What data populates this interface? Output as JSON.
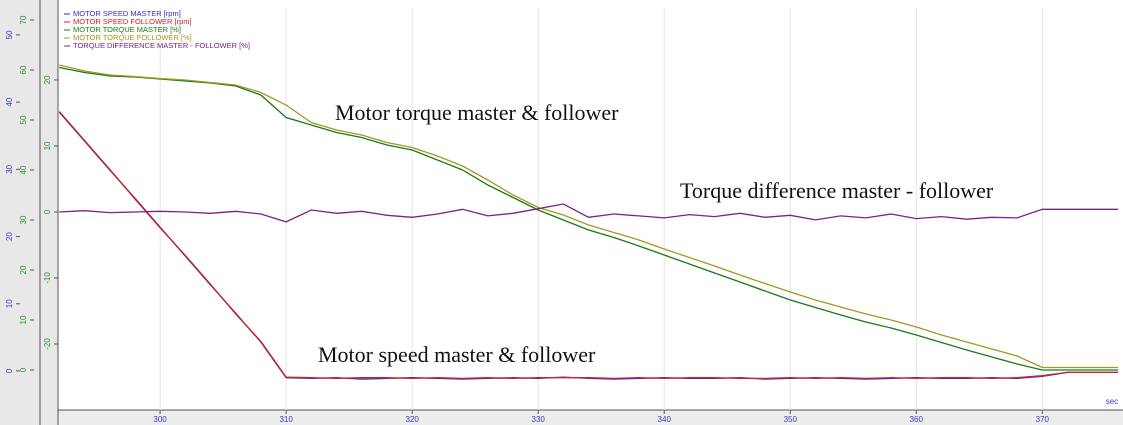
{
  "chart_data": {
    "type": "line",
    "x": [
      292,
      294,
      296,
      298,
      300,
      302,
      304,
      306,
      308,
      310,
      312,
      314,
      316,
      318,
      320,
      322,
      324,
      326,
      328,
      330,
      332,
      334,
      336,
      338,
      340,
      342,
      344,
      346,
      348,
      350,
      352,
      354,
      356,
      358,
      360,
      362,
      364,
      366,
      368,
      370,
      372,
      374,
      376
    ],
    "xlim": [
      291.9,
      376.4
    ],
    "xticks": [
      300,
      310,
      320,
      330,
      340,
      350,
      360,
      370
    ],
    "xlabel": "sec",
    "ylim": [
      -5.8,
      54
    ],
    "yticks": [
      0,
      10,
      20,
      30,
      40,
      50
    ],
    "ycolor": "#3a3ac8",
    "y2lim": [
      -8,
      72.4
    ],
    "y2ticks": [
      0,
      10,
      20,
      30,
      40,
      50,
      60,
      70
    ],
    "y2color": "#2e8b2e",
    "y3lim": [
      -30,
      30.9
    ],
    "y3ticks": [
      -20,
      -10,
      0,
      10,
      20
    ],
    "y3color": "#2e8b2e",
    "grid": true,
    "series": [
      {
        "name": "MOTOR SPEED MASTER [rpm]",
        "color": "#3030c0",
        "axis": "y",
        "values": [
          38.5,
          34.2,
          29.9,
          25.7,
          21.4,
          17.1,
          12.8,
          8.6,
          4.3,
          -1.0,
          -1.1,
          -1.0,
          -1.2,
          -1.1,
          -1.0,
          -1.1,
          -1.2,
          -1.1,
          -1.0,
          -1.1,
          -0.9,
          -1.1,
          -1.2,
          -1.1,
          -1.0,
          -1.1,
          -1.1,
          -1.0,
          -1.2,
          -1.1,
          -1.0,
          -1.1,
          -1.2,
          -1.1,
          -1.0,
          -1.1,
          -1.1,
          -1.0,
          -1.1,
          -0.8,
          -0.2,
          -0.2,
          -0.2
        ]
      },
      {
        "name": "MOTOR SPEED FOLLOWER [rpm]",
        "color": "#d02020",
        "axis": "y",
        "values": [
          38.6,
          34.3,
          30.0,
          25.6,
          21.3,
          17.2,
          12.9,
          8.5,
          4.4,
          -0.9,
          -1.0,
          -1.1,
          -1.0,
          -1.0,
          -1.1,
          -1.0,
          -1.1,
          -1.0,
          -1.1,
          -1.0,
          -1.0,
          -1.0,
          -1.1,
          -1.0,
          -1.1,
          -1.0,
          -1.0,
          -1.1,
          -1.1,
          -1.0,
          -1.1,
          -1.0,
          -1.1,
          -1.0,
          -1.1,
          -1.0,
          -1.0,
          -1.1,
          -1.0,
          -0.7,
          -0.2,
          -0.2,
          -0.2
        ]
      },
      {
        "name": "MOTOR TORQUE MASTER [%]",
        "color": "#1a7a1a",
        "axis": "y2",
        "values": [
          60.5,
          59.5,
          58.8,
          58.6,
          58.2,
          57.8,
          57.4,
          56.8,
          55,
          50.5,
          49,
          47.5,
          46.5,
          45,
          44,
          42,
          40,
          37,
          34.5,
          32,
          30,
          28,
          26.5,
          24.8,
          23,
          21.2,
          19.4,
          17.6,
          15.8,
          14,
          12.5,
          11,
          9.6,
          8.4,
          7,
          5.5,
          4,
          2.6,
          1.2,
          0,
          0,
          0,
          0
        ]
      },
      {
        "name": "MOTOR TORQUE FOLLOWER [%]",
        "color": "#a09a20",
        "axis": "y2",
        "values": [
          61,
          59.8,
          59,
          58.7,
          58.3,
          58,
          57.5,
          57,
          55.5,
          53,
          49.5,
          48,
          47,
          45.5,
          44.5,
          42.8,
          40.8,
          38,
          35,
          32.5,
          31,
          29,
          27.5,
          26,
          24.2,
          22.5,
          20.8,
          19,
          17.3,
          15.6,
          14,
          12.6,
          11.2,
          10,
          8.6,
          7,
          5.6,
          4.2,
          2.8,
          0.5,
          0.5,
          0.5,
          0.5
        ]
      },
      {
        "name": "TORQUE DIFFERENCE MASTER - FOLLOWER [%]",
        "color": "#802080",
        "axis": "y3",
        "values": [
          0,
          0.2,
          -0.1,
          0,
          0.1,
          0,
          -0.2,
          0.1,
          -0.3,
          -1.5,
          0.3,
          -0.2,
          0.1,
          -0.5,
          -0.8,
          -0.3,
          0.4,
          -0.6,
          -0.2,
          0.5,
          1.2,
          -0.8,
          -0.3,
          -0.6,
          -0.9,
          -0.4,
          -0.7,
          -0.2,
          -0.8,
          -0.5,
          -1.2,
          -0.6,
          -0.9,
          -0.3,
          -1.0,
          -0.7,
          -1.1,
          -0.8,
          -0.9,
          0.4,
          0.4,
          0.4,
          0.4
        ]
      }
    ],
    "annotations": [
      "Motor torque master & follower",
      "Torque difference master - follower",
      "Motor speed master & follower"
    ]
  }
}
